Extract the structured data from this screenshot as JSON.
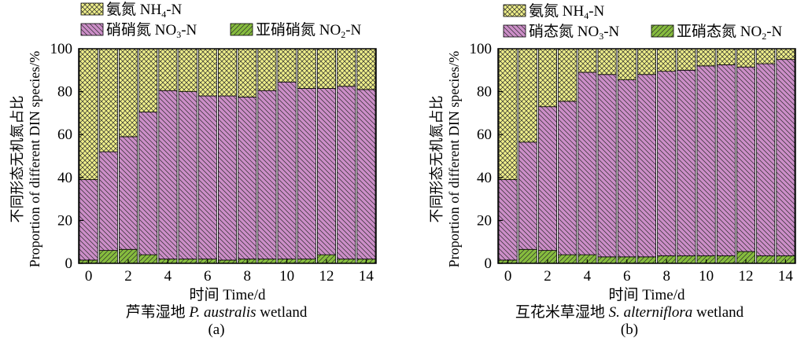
{
  "chart_data": [
    {
      "type": "bar",
      "stacked": true,
      "panel": "(a)",
      "xlabel": "时间 Time/d",
      "caption": {
        "cn": "芦苇湿地 ",
        "latin": "P. australis",
        "en": " wetland"
      },
      "ylabel_cn": "不同形态无机氮占比",
      "ylabel_en": "Proportion of different DIN species/%",
      "ylim": [
        0,
        100
      ],
      "yticks": [
        0,
        20,
        40,
        60,
        80,
        100
      ],
      "xticks": [
        0,
        2,
        4,
        6,
        8,
        10,
        12,
        14
      ],
      "legend": [
        {
          "cn": "氨氮 ",
          "chem": [
            "NH",
            "4",
            "-N"
          ],
          "series": "NH4-N"
        },
        {
          "cn": "硝硝氮 ",
          "chem": [
            "NO",
            "3",
            "-N"
          ],
          "series": "NO3-N"
        },
        {
          "cn": "亚硝硝氮 ",
          "chem": [
            "NO",
            "2",
            "-N"
          ],
          "series": "NO2-N"
        }
      ],
      "x": [
        0,
        1,
        2,
        3,
        4,
        5,
        6,
        7,
        8,
        9,
        10,
        11,
        12,
        13,
        14
      ],
      "series": [
        {
          "name": "NO2-N",
          "values": [
            1.5,
            6,
            6.5,
            4,
            2,
            2,
            2,
            1.5,
            2,
            2,
            2,
            2,
            4,
            2,
            2
          ]
        },
        {
          "name": "NO3-N",
          "values": [
            37.5,
            46,
            52.5,
            66.5,
            78.5,
            78,
            76,
            76.5,
            75.5,
            78.5,
            82.5,
            79.5,
            77.5,
            80.5,
            79
          ]
        },
        {
          "name": "NH4-N",
          "values": [
            61,
            48,
            41,
            29.5,
            19.5,
            20,
            22,
            22,
            22.5,
            19.5,
            15.5,
            18.5,
            18.5,
            17.5,
            19
          ]
        }
      ]
    },
    {
      "type": "bar",
      "stacked": true,
      "panel": "(b)",
      "xlabel": "时间 Time/d",
      "caption": {
        "cn": "互花米草湿地 ",
        "latin": "S. alterniflora",
        "en": " wetland"
      },
      "ylabel_cn": "不同形态无机氮占比",
      "ylabel_en": "Proportion of different DIN species/%",
      "ylim": [
        0,
        100
      ],
      "yticks": [
        0,
        20,
        40,
        60,
        80,
        100
      ],
      "xticks": [
        0,
        2,
        4,
        6,
        8,
        10,
        12,
        14
      ],
      "legend": [
        {
          "cn": "氨氮 ",
          "chem": [
            "NH",
            "4",
            "-N"
          ],
          "series": "NH4-N"
        },
        {
          "cn": "硝态氮 ",
          "chem": [
            "NO",
            "3",
            "-N"
          ],
          "series": "NO3-N"
        },
        {
          "cn": "亚硝态氮 ",
          "chem": [
            "NO",
            "2",
            "-N"
          ],
          "series": "NO2-N"
        }
      ],
      "x": [
        0,
        1,
        2,
        3,
        4,
        5,
        6,
        7,
        8,
        9,
        10,
        11,
        12,
        13,
        14
      ],
      "series": [
        {
          "name": "NO2-N",
          "values": [
            1.5,
            6.5,
            6,
            4,
            4,
            3,
            3,
            3,
            3.5,
            3.5,
            3.5,
            3.5,
            5.5,
            3.5,
            3.5
          ]
        },
        {
          "name": "NO3-N",
          "values": [
            37.5,
            50,
            67,
            71.5,
            85,
            85,
            82.5,
            85,
            86,
            86.5,
            88.5,
            89,
            86,
            89.5,
            91.5
          ]
        },
        {
          "name": "NH4-N",
          "values": [
            61,
            43.5,
            27,
            24.5,
            11,
            12,
            14.5,
            12,
            10.5,
            10,
            8,
            7.5,
            8.5,
            7,
            5
          ]
        }
      ]
    }
  ],
  "colors": {
    "NH4-N": "#efef8a",
    "NO3-N": "#cc8ec8",
    "NO2-N": "#86bc3e",
    "hatch": "#2a2a2a",
    "axis": "#000000"
  }
}
